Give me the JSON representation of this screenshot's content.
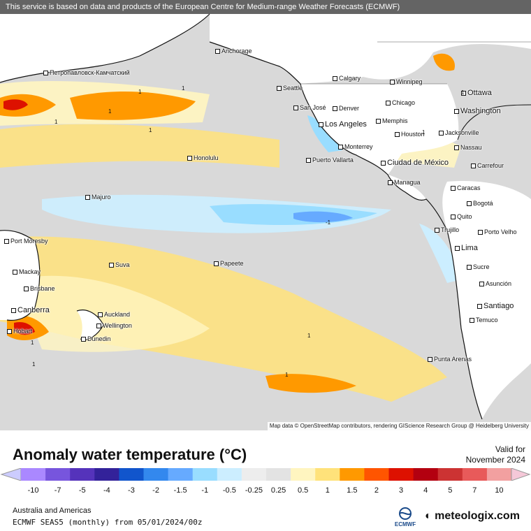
{
  "header": {
    "notice": "This service is based on data and products of the European Centre for Medium-range Weather Forecasts (ECMWF)"
  },
  "attribution": "Map data © OpenStreetMap contributors, rendering GIScience Research Group @ Heidelberg University",
  "cities": [
    {
      "name": "Anchorage",
      "big": false
    },
    {
      "name": "Петропавловск-Камчатский",
      "big": false
    },
    {
      "name": "Calgary",
      "big": false
    },
    {
      "name": "Winnipeg",
      "big": false
    },
    {
      "name": "Seattle",
      "big": false
    },
    {
      "name": "Ottawa",
      "big": true
    },
    {
      "name": "Washington",
      "big": true
    },
    {
      "name": "San José",
      "big": false
    },
    {
      "name": "Denver",
      "big": false
    },
    {
      "name": "Chicago",
      "big": false
    },
    {
      "name": "Los Angeles",
      "big": true
    },
    {
      "name": "Memphis",
      "big": false
    },
    {
      "name": "Houston",
      "big": false
    },
    {
      "name": "Jacksonville",
      "big": false
    },
    {
      "name": "Monterrey",
      "big": false
    },
    {
      "name": "Nassau",
      "big": false
    },
    {
      "name": "Honolulu",
      "big": false
    },
    {
      "name": "Puerto Vallarta",
      "big": false
    },
    {
      "name": "Ciudad de México",
      "big": true
    },
    {
      "name": "Carrefour",
      "big": false
    },
    {
      "name": "Managua",
      "big": false
    },
    {
      "name": "Caracas",
      "big": false
    },
    {
      "name": "Majuro",
      "big": false
    },
    {
      "name": "Bogotá",
      "big": false
    },
    {
      "name": "Quito",
      "big": false
    },
    {
      "name": "Trujillo",
      "big": false
    },
    {
      "name": "Porto Velho",
      "big": false
    },
    {
      "name": "Port Moresby",
      "big": false
    },
    {
      "name": "Lima",
      "big": true
    },
    {
      "name": "Suva",
      "big": false
    },
    {
      "name": "Papeete",
      "big": false
    },
    {
      "name": "Sucre",
      "big": false
    },
    {
      "name": "Mackay",
      "big": false
    },
    {
      "name": "Asunción",
      "big": false
    },
    {
      "name": "Brisbane",
      "big": false
    },
    {
      "name": "Santiago",
      "big": true
    },
    {
      "name": "Canberra",
      "big": true
    },
    {
      "name": "Auckland",
      "big": false
    },
    {
      "name": "Temuco",
      "big": false
    },
    {
      "name": "Wellington",
      "big": false
    },
    {
      "name": "Hobart",
      "big": false
    },
    {
      "name": "Dunedin",
      "big": false
    },
    {
      "name": "Punta Arenas",
      "big": false
    }
  ],
  "contour_labels": [
    "1",
    "1",
    "1",
    "1",
    "1",
    "1",
    "-1",
    "1",
    "1",
    "1",
    "1",
    "1"
  ],
  "legend": {
    "title": "Anomaly water temperature (°C)",
    "valid_label": "Valid for",
    "valid_date": "November 2024",
    "ticks": [
      "-10",
      "-7",
      "-5",
      "-4",
      "-3",
      "-2",
      "-1.5",
      "-1",
      "-0.5",
      "-0.25",
      "0.25",
      "0.5",
      "1",
      "1.5",
      "2",
      "3",
      "4",
      "5",
      "7",
      "10"
    ],
    "colors": [
      "#aa88ff",
      "#7755dd",
      "#5533bb",
      "#33229a",
      "#1155cc",
      "#3388ee",
      "#66aaff",
      "#99ddff",
      "#cceeff",
      "#ededed",
      "#e3e3e3",
      "#fff5c0",
      "#ffe27a",
      "#ff9900",
      "#ff5500",
      "#dd1100",
      "#b30010",
      "#cc3333",
      "#e85a5a",
      "#f2a0a0"
    ],
    "end_low": "#ccccff",
    "end_high": "#f5c8d8"
  },
  "footer": {
    "region": "Australia and Americas",
    "model": "ECMWF SEAS5 (monthly) from 05/01/2024/00z",
    "ecmwf": "ECMWF",
    "brand": "meteologix.com"
  }
}
